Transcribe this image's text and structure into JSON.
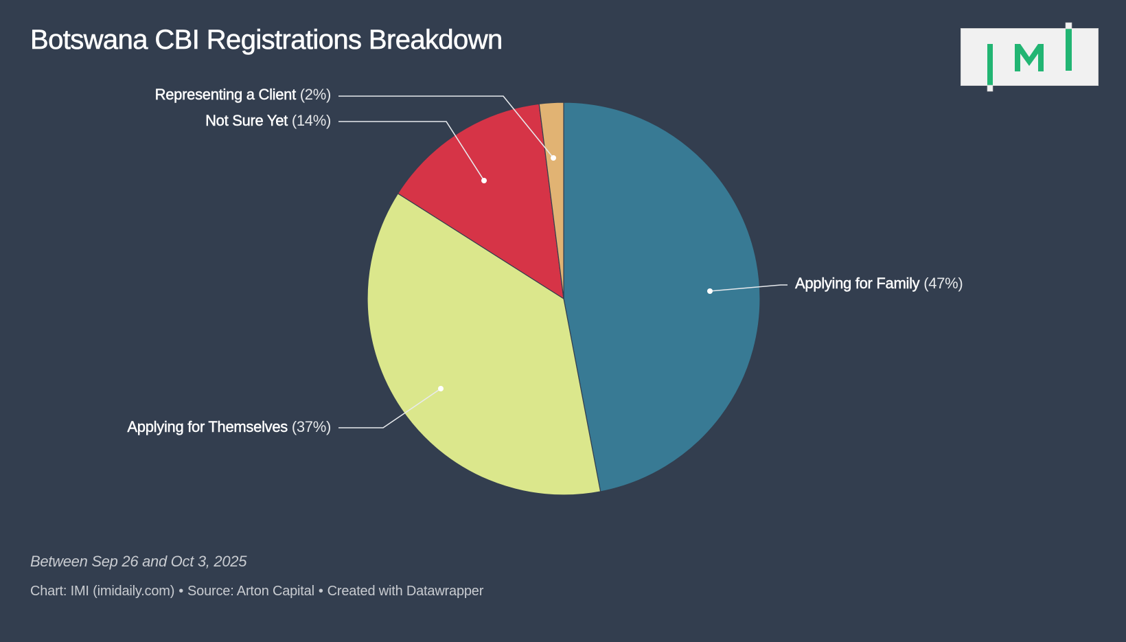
{
  "header": {
    "title": "Botswana CBI Registrations Breakdown"
  },
  "logo": {
    "text": "IMI",
    "color": "#22b573",
    "background": "#f1f1f1"
  },
  "chart_data": {
    "type": "pie",
    "title": "Botswana CBI Registrations Breakdown",
    "subtitle": "",
    "start_angle_deg": 0,
    "direction": "clockwise",
    "categories": [
      "Applying for Family",
      "Applying for Themselves",
      "Not Sure Yet",
      "Representing a Client"
    ],
    "values": [
      47,
      37,
      14,
      2
    ],
    "unit": "%",
    "colors": [
      "#387a94",
      "#dbe78c",
      "#d63447",
      "#e1b373"
    ],
    "slices": [
      {
        "label": "Applying for Family",
        "value": 47,
        "display": "(47%)",
        "color": "#387a94"
      },
      {
        "label": "Applying for Themselves",
        "value": 37,
        "display": "(37%)",
        "color": "#dbe78c"
      },
      {
        "label": "Not Sure Yet",
        "value": 14,
        "display": "(14%)",
        "color": "#d63447"
      },
      {
        "label": "Representing a Client",
        "value": 2,
        "display": "(2%)",
        "color": "#e1b373"
      }
    ],
    "legend": "none (direct labels with leader lines)",
    "background": "#333e4f"
  },
  "notes": {
    "text": "Between Sep 26 and Oct 3, 2025"
  },
  "footer": {
    "chart_credit": "Chart: IMI (imidaily.com)",
    "source": "Source: Arton Capital",
    "created_with": "Created with Datawrapper",
    "separator": "•"
  }
}
